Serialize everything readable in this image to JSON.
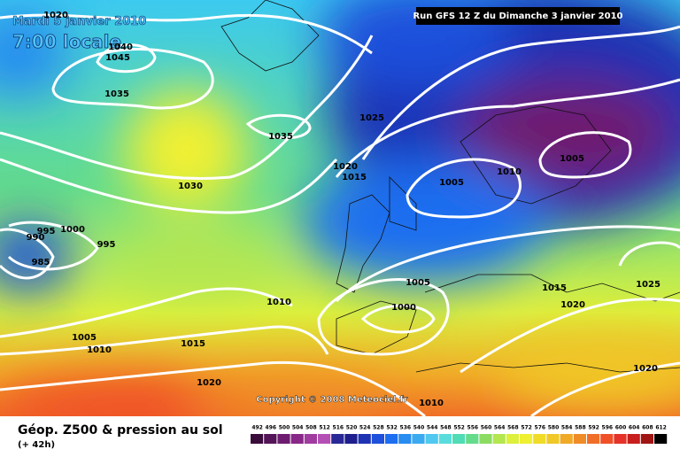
{
  "header": {
    "date": "Mardi 5 janvier 2010",
    "time": "7:00 locale",
    "run": "Run GFS 12 Z du Dimanche 3 janvier 2010"
  },
  "isobar_labels": [
    1020,
    1040,
    1045,
    1035,
    1035,
    1025,
    1030,
    1020,
    1015,
    1005,
    1010,
    1005,
    1000,
    995,
    990,
    995,
    985,
    1005,
    1015,
    1025,
    1010,
    1000,
    1020,
    1005,
    1010,
    1015,
    1020,
    1020,
    1010
  ],
  "copyright": "Copyright © 2008 Meteociel.fr",
  "footer": {
    "title": "Géop. Z500 & pression au sol",
    "lead": "(+ 42h)"
  },
  "legend": {
    "values": [
      492,
      496,
      500,
      504,
      508,
      512,
      516,
      520,
      524,
      528,
      532,
      536,
      540,
      544,
      548,
      552,
      556,
      560,
      564,
      568,
      572,
      576,
      580,
      584,
      588,
      592,
      596,
      600,
      604,
      608,
      612
    ],
    "colors": [
      "#3a0c3a",
      "#541458",
      "#6e1c70",
      "#882888",
      "#a03ca0",
      "#b450b4",
      "#282896",
      "#1e1e8c",
      "#1e32b4",
      "#1e50dc",
      "#1e6ef0",
      "#288cf0",
      "#3caaf0",
      "#50c8f0",
      "#5adcdc",
      "#50dcb4",
      "#64dc8c",
      "#8cdc64",
      "#b4e650",
      "#dcf03c",
      "#f0f032",
      "#f0dc28",
      "#f0c828",
      "#f0aa28",
      "#f08c28",
      "#f06e28",
      "#f05028",
      "#e63228",
      "#c81e1e",
      "#a01414",
      "#000000"
    ]
  }
}
